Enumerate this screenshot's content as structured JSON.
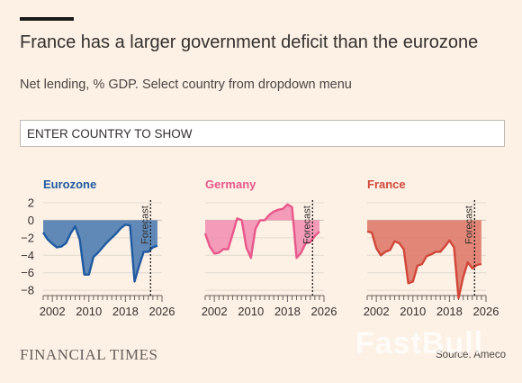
{
  "header": {
    "title": "France has a larger government deficit than the eurozone",
    "subtitle": "Net lending, % GDP. Select country from dropdown menu"
  },
  "search": {
    "placeholder": "ENTER COUNTRY TO SHOW"
  },
  "footer": {
    "brand": "FINANCIAL TIMES",
    "source": "Source: Ameco",
    "watermark": "FastBull"
  },
  "colors": {
    "background": "#fdf1e5",
    "text": "#33302e"
  },
  "chart_data": [
    {
      "type": "area",
      "title": "Eurozone",
      "color": "#1f5aa0",
      "fill": "#4f7db3",
      "forecast_label": "Forecast",
      "forecast_start": 2023.5,
      "ylim": [
        -8.6,
        2.2
      ],
      "yticks": [
        2,
        0,
        -2,
        -4,
        -6,
        -8
      ],
      "xlim": [
        2000,
        2026
      ],
      "xticks": [
        2002,
        2010,
        2018,
        2026
      ],
      "x": [
        2000,
        2001,
        2002,
        2003,
        2004,
        2005,
        2006,
        2007,
        2008,
        2009,
        2010,
        2011,
        2012,
        2013,
        2014,
        2015,
        2016,
        2017,
        2018,
        2019,
        2020,
        2021,
        2022,
        2023,
        2024,
        2025
      ],
      "values": [
        -1.4,
        -2.2,
        -2.7,
        -3.1,
        -3.0,
        -2.6,
        -1.5,
        -0.7,
        -2.2,
        -6.2,
        -6.2,
        -4.2,
        -3.7,
        -3.1,
        -2.5,
        -2.0,
        -1.5,
        -0.9,
        -0.5,
        -0.6,
        -7.0,
        -5.2,
        -3.6,
        -3.6,
        -3.1,
        -2.9
      ]
    },
    {
      "type": "area",
      "title": "Germany",
      "color": "#e8578a",
      "fill": "#f291b2",
      "forecast_label": "Forecast",
      "forecast_start": 2023.5,
      "ylim": [
        -8.6,
        2.2
      ],
      "yticks": [
        2,
        0,
        -2,
        -4,
        -6,
        -8
      ],
      "xlim": [
        2000,
        2026
      ],
      "xticks": [
        2002,
        2010,
        2018,
        2026
      ],
      "x": [
        2000,
        2001,
        2002,
        2003,
        2004,
        2005,
        2006,
        2007,
        2008,
        2009,
        2010,
        2011,
        2012,
        2013,
        2014,
        2015,
        2016,
        2017,
        2018,
        2019,
        2020,
        2021,
        2022,
        2023,
        2024,
        2025
      ],
      "values": [
        -1.5,
        -3.0,
        -3.8,
        -3.7,
        -3.3,
        -3.3,
        -1.6,
        0.2,
        0.0,
        -3.1,
        -4.3,
        -1.0,
        0.0,
        0.0,
        0.6,
        1.0,
        1.2,
        1.3,
        1.8,
        1.5,
        -4.3,
        -3.7,
        -2.6,
        -2.5,
        -1.8,
        -1.3
      ]
    },
    {
      "type": "area",
      "title": "France",
      "color": "#d0473a",
      "fill": "#df7a6a",
      "forecast_label": "Forecast",
      "forecast_start": 2023.5,
      "ylim": [
        -8.6,
        2.2
      ],
      "yticks": [
        2,
        0,
        -2,
        -4,
        -6,
        -8
      ],
      "xlim": [
        2000,
        2026
      ],
      "xticks": [
        2002,
        2010,
        2018,
        2026
      ],
      "x": [
        2000,
        2001,
        2002,
        2003,
        2004,
        2005,
        2006,
        2007,
        2008,
        2009,
        2010,
        2011,
        2012,
        2013,
        2014,
        2015,
        2016,
        2017,
        2018,
        2019,
        2020,
        2021,
        2022,
        2023,
        2024,
        2025
      ],
      "values": [
        -1.3,
        -1.4,
        -3.2,
        -4.0,
        -3.6,
        -3.4,
        -2.4,
        -2.6,
        -3.3,
        -7.2,
        -7.0,
        -5.2,
        -5.0,
        -4.1,
        -3.9,
        -3.6,
        -3.6,
        -3.0,
        -2.3,
        -3.1,
        -8.9,
        -6.5,
        -4.8,
        -5.5,
        -5.1,
        -5.0
      ]
    }
  ]
}
